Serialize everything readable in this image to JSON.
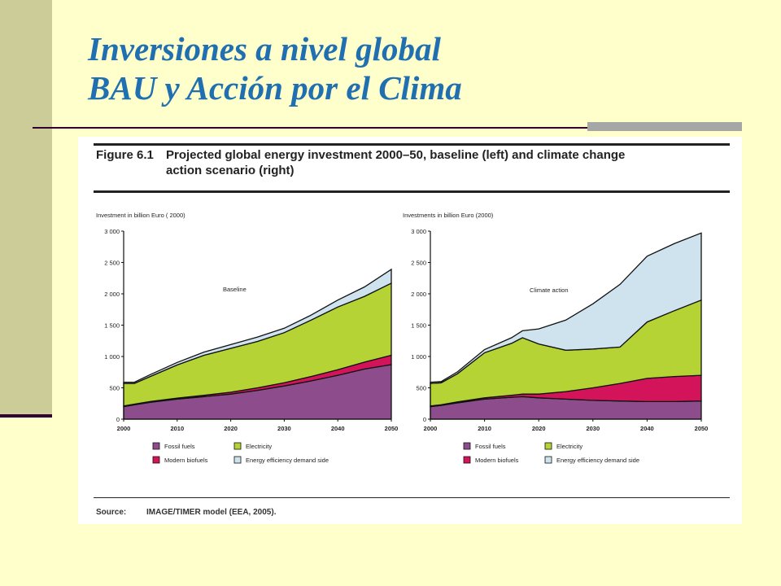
{
  "slide": {
    "title_line1": "Inversiones a nivel global",
    "title_line2": "BAU y Acción por el Clima"
  },
  "figure": {
    "number": "Figure 6.1",
    "title_line1": "Projected global energy investment 2000–50, baseline (left) and climate change",
    "title_line2": "action scenario (right)",
    "source_label": "Source:",
    "source_text": "IMAGE/TIMER model (EEA, 2005)."
  },
  "chart_data": [
    {
      "type": "area",
      "stacked": true,
      "title": "Baseline",
      "ylabel": "Investment in billion Euro ( 2000)",
      "xlabel": "",
      "ylim": [
        0,
        3000
      ],
      "xlim": [
        2000,
        2050
      ],
      "x_ticks": [
        2000,
        2010,
        2020,
        2030,
        2040,
        2050
      ],
      "y_ticks": [
        0,
        500,
        1000,
        1500,
        2000,
        2500,
        3000
      ],
      "y_tick_labels": [
        "0",
        "500",
        "1 000",
        "1 500",
        "2 000",
        "2 500",
        "3 000"
      ],
      "legend_position": "bottom",
      "x": [
        2000,
        2002,
        2005,
        2010,
        2015,
        2020,
        2025,
        2030,
        2035,
        2040,
        2045,
        2050
      ],
      "series": [
        {
          "name": "Fossil fuels",
          "color": "#8d4d8c",
          "values": [
            200,
            230,
            270,
            320,
            360,
            400,
            460,
            530,
            610,
            700,
            800,
            870
          ]
        },
        {
          "name": "Modern biofuels",
          "color": "#d4145a",
          "values": [
            10,
            10,
            12,
            15,
            20,
            30,
            40,
            50,
            70,
            90,
            110,
            150
          ]
        },
        {
          "name": "Electricity",
          "color": "#b5d334",
          "values": [
            360,
            330,
            400,
            530,
            640,
            700,
            740,
            800,
            900,
            1000,
            1050,
            1150
          ]
        },
        {
          "name": "Energy efficiency demand side",
          "color": "#cfe3ef",
          "values": [
            20,
            20,
            30,
            40,
            50,
            60,
            70,
            70,
            80,
            110,
            150,
            220
          ]
        }
      ]
    },
    {
      "type": "area",
      "stacked": true,
      "title": "Climate action",
      "ylabel": "Investments in billion Euro (2000)",
      "xlabel": "",
      "ylim": [
        0,
        3000
      ],
      "xlim": [
        2000,
        2050
      ],
      "x_ticks": [
        2000,
        2010,
        2020,
        2030,
        2040,
        2050
      ],
      "y_ticks": [
        0,
        500,
        1000,
        1500,
        2000,
        2500,
        3000
      ],
      "y_tick_labels": [
        "0",
        "500",
        "1 000",
        "1 500",
        "2 000",
        "2 500",
        "3 000"
      ],
      "legend_position": "bottom",
      "x": [
        2000,
        2002,
        2005,
        2010,
        2015,
        2017,
        2020,
        2025,
        2030,
        2035,
        2040,
        2045,
        2050
      ],
      "series": [
        {
          "name": "Fossil fuels",
          "color": "#8d4d8c",
          "values": [
            200,
            220,
            260,
            320,
            350,
            360,
            340,
            320,
            300,
            290,
            280,
            280,
            290
          ]
        },
        {
          "name": "Modern biofuels",
          "color": "#d4145a",
          "values": [
            10,
            10,
            15,
            20,
            30,
            40,
            60,
            120,
            200,
            280,
            370,
            400,
            410
          ]
        },
        {
          "name": "Electricity",
          "color": "#b5d334",
          "values": [
            360,
            350,
            450,
            720,
            830,
            900,
            800,
            660,
            620,
            580,
            900,
            1050,
            1200
          ]
        },
        {
          "name": "Energy efficiency demand side",
          "color": "#cfe3ef",
          "values": [
            20,
            20,
            30,
            50,
            90,
            110,
            240,
            480,
            720,
            1000,
            1050,
            1070,
            1070
          ]
        }
      ]
    }
  ]
}
